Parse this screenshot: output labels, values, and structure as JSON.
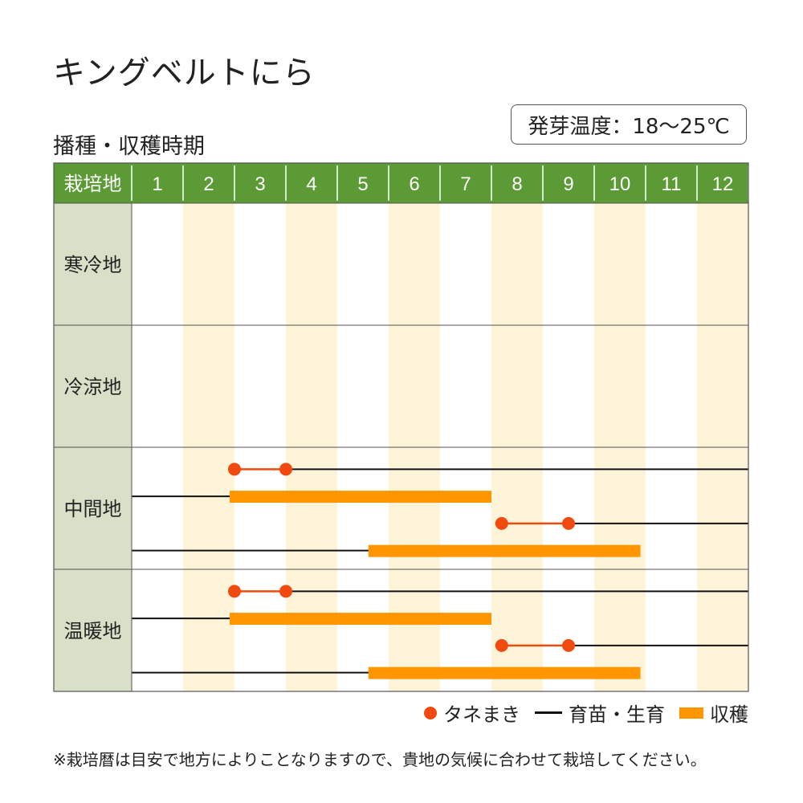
{
  "title": "キングベルトにら",
  "subtitle": "播種・収穫時期",
  "germination_temp": "発芽温度：18〜25℃",
  "colors": {
    "header_green": "#5b9a34",
    "region_col": "#d8e0c8",
    "stripe": "#fdf3d8",
    "sowing": "#f04a10",
    "growth": "#111111",
    "harvest": "#ff9600"
  },
  "legend": {
    "sowing": "タネまき",
    "growth": "育苗・生育",
    "harvest": "収穫"
  },
  "note": "※栽培暦は目安で地方によりことなりますので、貴地の気候に合わせて栽培してください。",
  "chart_data": {
    "type": "table",
    "header_label": "栽培地",
    "months": [
      "1",
      "2",
      "3",
      "4",
      "5",
      "6",
      "7",
      "8",
      "9",
      "10",
      "11",
      "12"
    ],
    "regions": [
      {
        "name": "寒冷地",
        "rows": []
      },
      {
        "name": "冷涼地",
        "rows": []
      },
      {
        "name": "中間地",
        "rows": [
          {
            "kind": "sow",
            "sow_start": 3.0,
            "sow_end": 4.0,
            "growth_end": 13.0
          },
          {
            "kind": "harvest",
            "growth_start": 1.0,
            "harvest_start": 3.0,
            "harvest_end": 8.0
          },
          {
            "kind": "sow",
            "sow_start": 8.2,
            "sow_end": 9.5,
            "growth_end": 13.0
          },
          {
            "kind": "harvest",
            "growth_start": 1.0,
            "harvest_start": 5.7,
            "harvest_end": 10.9
          }
        ]
      },
      {
        "name": "温暖地",
        "rows": [
          {
            "kind": "sow",
            "sow_start": 3.0,
            "sow_end": 4.0,
            "growth_end": 13.0
          },
          {
            "kind": "harvest",
            "growth_start": 1.0,
            "harvest_start": 3.0,
            "harvest_end": 8.0
          },
          {
            "kind": "sow",
            "sow_start": 8.2,
            "sow_end": 9.5,
            "growth_end": 13.0
          },
          {
            "kind": "harvest",
            "growth_start": 1.0,
            "harvest_start": 5.7,
            "harvest_end": 10.9
          }
        ]
      }
    ]
  }
}
